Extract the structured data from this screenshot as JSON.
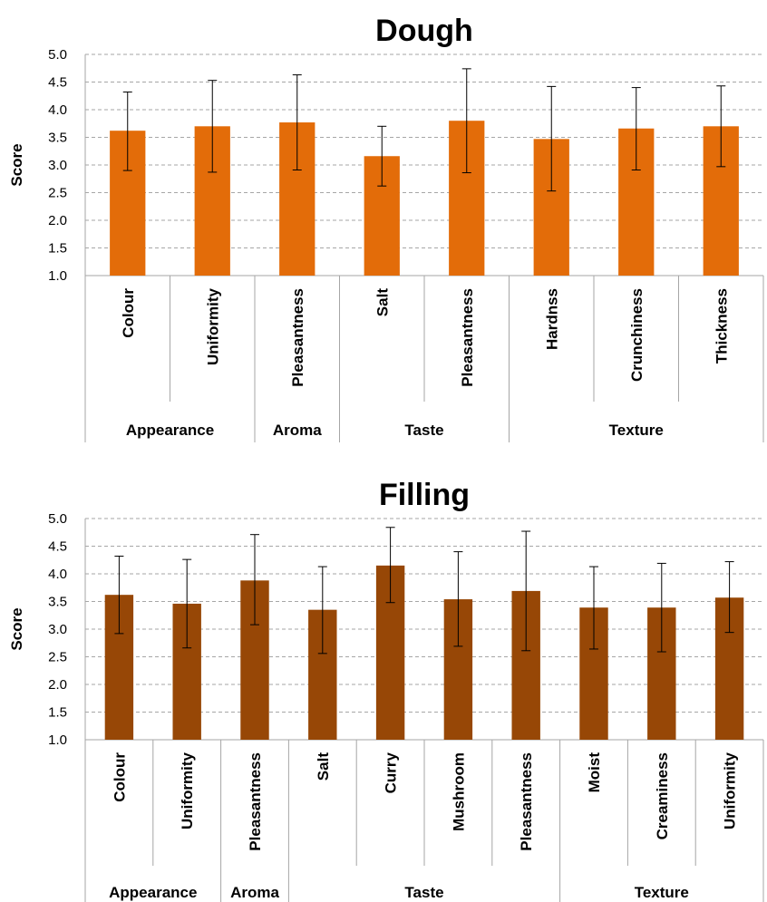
{
  "chart_data": [
    {
      "type": "bar",
      "title": "Dough",
      "ylabel": "Score",
      "ylim": [
        1.0,
        5.0
      ],
      "yticks": [
        "1.0",
        "1.5",
        "2.0",
        "2.5",
        "3.0",
        "3.5",
        "4.0",
        "4.5",
        "5.0"
      ],
      "grid": true,
      "bar_color": "#e36c09",
      "categories": [
        "Colour",
        "Uniformity",
        "Pleasantness",
        "Salt",
        "Pleasantness",
        "Hardnss",
        "Crunchiness",
        "Thickness"
      ],
      "values": [
        3.62,
        3.7,
        3.77,
        3.16,
        3.8,
        3.47,
        3.66,
        3.7
      ],
      "error_low": [
        2.9,
        2.87,
        2.91,
        2.62,
        2.86,
        2.53,
        2.91,
        2.97
      ],
      "error_high": [
        4.32,
        4.53,
        4.63,
        3.7,
        4.74,
        4.42,
        4.4,
        4.43
      ],
      "groups": [
        {
          "label": "Appearance",
          "count": 2
        },
        {
          "label": "Aroma",
          "count": 1
        },
        {
          "label": "Taste",
          "count": 2
        },
        {
          "label": "Texture",
          "count": 3
        }
      ]
    },
    {
      "type": "bar",
      "title": "Filling",
      "ylabel": "Score",
      "ylim": [
        1.0,
        5.0
      ],
      "yticks": [
        "1.0",
        "1.5",
        "2.0",
        "2.5",
        "3.0",
        "3.5",
        "4.0",
        "4.5",
        "5.0"
      ],
      "grid": true,
      "bar_color": "#974706",
      "categories": [
        "Colour",
        "Uniformity",
        "Pleasantness",
        "Salt",
        "Curry",
        "Mushroom",
        "Pleasantness",
        "Moist",
        "Creaminess",
        "Uniformity"
      ],
      "values": [
        3.62,
        3.46,
        3.88,
        3.35,
        4.15,
        3.54,
        3.69,
        3.39,
        3.39,
        3.57
      ],
      "error_low": [
        2.92,
        2.66,
        3.08,
        2.56,
        3.48,
        2.69,
        2.61,
        2.64,
        2.59,
        2.94
      ],
      "error_high": [
        4.32,
        4.26,
        4.71,
        4.13,
        4.84,
        4.4,
        4.77,
        4.13,
        4.19,
        4.22
      ],
      "groups": [
        {
          "label": "Appearance",
          "count": 2
        },
        {
          "label": "Aroma",
          "count": 1
        },
        {
          "label": "Taste",
          "count": 4
        },
        {
          "label": "Texture",
          "count": 3
        }
      ]
    }
  ]
}
